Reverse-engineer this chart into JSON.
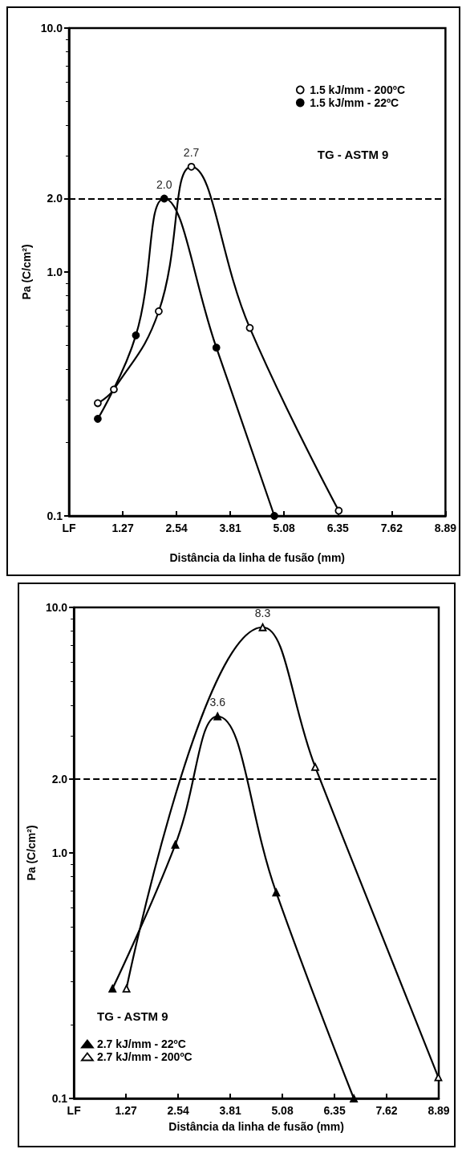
{
  "chart_data": [
    {
      "type": "line",
      "xlabel": "Distância da linha de fusão (mm)",
      "ylabel": "Pa (C/cm²)",
      "log": "y",
      "xlim": [
        0,
        8.89
      ],
      "xticks": [
        {
          "value": 0,
          "label": "LF"
        },
        1.27,
        2.54,
        3.81,
        5.08,
        6.35,
        7.62,
        8.89
      ],
      "ylim": [
        0.1,
        10
      ],
      "yticks": [
        0.1,
        {
          "value": 1,
          "label": "1.0"
        },
        {
          "value": 2,
          "label": "2.0"
        },
        {
          "value": 10,
          "label": "10.0"
        }
      ],
      "grid": false,
      "legend": "top right",
      "marker": "circle",
      "annotations": [
        "TG - ASTM 9"
      ],
      "ref_lines": [
        {
          "axis": "y",
          "value": 2,
          "line_style": "dashed"
        }
      ],
      "series": [
        {
          "name": "1.5 kJ/mm - 200ºC",
          "color": "#000000",
          "colors": [
            "#ffffff",
            "#ffffff",
            "#ffffff",
            "#ffffff",
            "#ffffff",
            "#ffffff"
          ],
          "x": [
            0.68,
            1.06,
            2.12,
            2.89,
            4.27,
            6.37
          ],
          "values": [
            0.29,
            0.33,
            0.69,
            2.7,
            0.59,
            0.105
          ],
          "value_labels": [
            null,
            null,
            null,
            "2.7",
            null,
            null
          ]
        },
        {
          "name": "1.5 kJ/mm - 22ºC",
          "color": "#000000",
          "x": [
            0.68,
            1.58,
            2.25,
            3.48,
            4.85
          ],
          "values": [
            0.25,
            0.55,
            2.0,
            0.49,
            0.1
          ],
          "value_labels": [
            null,
            null,
            "2.0",
            null,
            null
          ]
        }
      ]
    },
    {
      "type": "line",
      "xlabel": "Distância da linha de fusão (mm)",
      "ylabel": "Pa (C/cm²)",
      "log": "y",
      "xlim": [
        0,
        8.89
      ],
      "xticks": [
        {
          "value": 0,
          "label": "LF"
        },
        1.27,
        2.54,
        3.81,
        5.08,
        6.35,
        7.62,
        8.89
      ],
      "ylim": [
        0.1,
        10
      ],
      "yticks": [
        0.1,
        {
          "value": 1,
          "label": "1.0"
        },
        {
          "value": 2,
          "label": "2.0"
        },
        {
          "value": 10,
          "label": "10.0"
        }
      ],
      "grid": false,
      "legend": "bottom left",
      "marker": "triangle",
      "annotations": [
        "TG - ASTM 9"
      ],
      "ref_lines": [
        {
          "axis": "y",
          "value": 2,
          "line_style": "dashed"
        }
      ],
      "series": [
        {
          "name": "2.7 kJ/mm - 22ºC",
          "color": "#000000",
          "x": [
            0.94,
            2.47,
            3.5,
            4.93,
            6.82
          ],
          "values": [
            0.28,
            1.08,
            3.6,
            0.69,
            0.1
          ],
          "value_labels": [
            null,
            null,
            "3.6",
            null,
            null
          ]
        },
        {
          "name": "2.7 kJ/mm - 200ºC",
          "color": "#000000",
          "colors": [
            "#ffffff",
            "#ffffff",
            "#ffffff",
            "#ffffff"
          ],
          "x": [
            1.28,
            4.6,
            5.88,
            8.88
          ],
          "values": [
            0.28,
            8.3,
            2.24,
            0.122
          ],
          "value_labels": [
            null,
            "8.3",
            null,
            null
          ]
        }
      ]
    }
  ]
}
